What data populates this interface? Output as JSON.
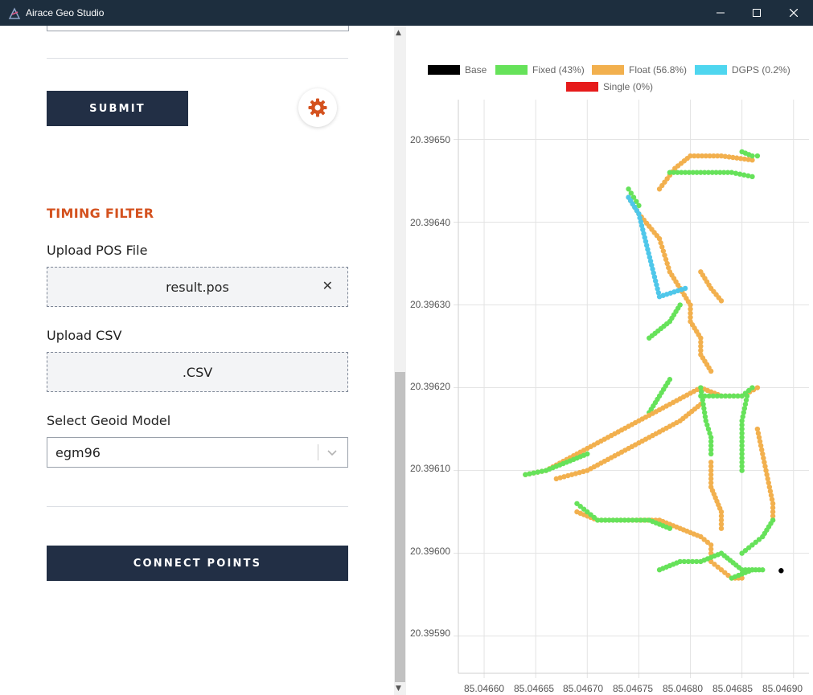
{
  "window": {
    "title": "Airace Geo Studio",
    "minimize": "—",
    "maximize": "☐",
    "close": "✕"
  },
  "left": {
    "submit_label": "SUBMIT",
    "section_title": "TIMING FILTER",
    "pos_label": "Upload POS File",
    "pos_value": "result.pos",
    "pos_clear": "✕",
    "csv_label": "Upload CSV",
    "csv_value": ".CSV",
    "geoid_label": "Select Geoid Model",
    "geoid_value": "egm96",
    "connect_label": "CONNECT POINTS"
  },
  "colors": {
    "accent": "#d4521f",
    "button": "#222f45",
    "titlebar": "#1d2e3e"
  },
  "chart_data": {
    "type": "scatter",
    "legend": [
      {
        "name": "Base",
        "color": "#000000"
      },
      {
        "name": "Fixed (43%)",
        "color": "#66e25a"
      },
      {
        "name": "Float (56.8%)",
        "color": "#f2b04e"
      },
      {
        "name": "DGPS (0.2%)",
        "color": "#4fc7ea"
      },
      {
        "name": "Single (0%)",
        "color": "#e32626"
      }
    ],
    "x_ticks": [
      "85.04660",
      "85.04665",
      "85.04670",
      "85.04675",
      "85.04680",
      "85.04685",
      "85.04690"
    ],
    "y_ticks": [
      "20.39650",
      "20.39640",
      "20.39630",
      "20.39620",
      "20.39610",
      "20.39600",
      "20.39590"
    ],
    "xlim": [
      85.046575,
      85.046915
    ],
    "ylim": [
      20.395855,
      20.396548
    ],
    "grid": true,
    "legend_position": "top",
    "base_point": [
      85.046888,
      20.395979
    ],
    "tracks": [
      {
        "type": "Float",
        "pts": [
          [
            85.04677,
            20.39644
          ],
          [
            85.046785,
            20.396465
          ],
          [
            85.0468,
            20.39648
          ],
          [
            85.04683,
            20.39648
          ],
          [
            85.04686,
            20.396475
          ]
        ]
      },
      {
        "type": "Fixed",
        "pts": [
          [
            85.04678,
            20.39646
          ],
          [
            85.04681,
            20.39646
          ],
          [
            85.04684,
            20.39646
          ],
          [
            85.04686,
            20.396455
          ]
        ]
      },
      {
        "type": "Fixed",
        "pts": [
          [
            85.04685,
            20.396485
          ],
          [
            85.04686,
            20.39648
          ],
          [
            85.046865,
            20.39648
          ]
        ]
      },
      {
        "type": "Float",
        "pts": [
          [
            85.04674,
            20.39643
          ],
          [
            85.04675,
            20.39641
          ],
          [
            85.04677,
            20.39638
          ],
          [
            85.046775,
            20.39636
          ],
          [
            85.04678,
            20.39634
          ],
          [
            85.04679,
            20.39632
          ],
          [
            85.0468,
            20.3963
          ],
          [
            85.0468,
            20.39628
          ],
          [
            85.04681,
            20.39626
          ],
          [
            85.04681,
            20.39624
          ],
          [
            85.04682,
            20.39622
          ]
        ]
      },
      {
        "type": "Float",
        "pts": [
          [
            85.04681,
            20.39634
          ],
          [
            85.04682,
            20.39632
          ],
          [
            85.04683,
            20.396305
          ]
        ]
      },
      {
        "type": "Fixed",
        "pts": [
          [
            85.04674,
            20.39644
          ],
          [
            85.046745,
            20.39643
          ],
          [
            85.04675,
            20.39642
          ]
        ]
      },
      {
        "type": "Fixed",
        "pts": [
          [
            85.04676,
            20.39626
          ],
          [
            85.04678,
            20.39628
          ],
          [
            85.04679,
            20.3963
          ]
        ]
      },
      {
        "type": "Fixed",
        "pts": [
          [
            85.04676,
            20.39617
          ],
          [
            85.04677,
            20.39619
          ],
          [
            85.04678,
            20.39621
          ]
        ]
      },
      {
        "type": "Float",
        "pts": [
          [
            85.04664,
            20.396095
          ],
          [
            85.04666,
            20.3961
          ],
          [
            85.04669,
            20.39612
          ],
          [
            85.04672,
            20.39614
          ],
          [
            85.04675,
            20.39616
          ],
          [
            85.04678,
            20.39618
          ],
          [
            85.04681,
            20.3962
          ],
          [
            85.04683,
            20.39619
          ],
          [
            85.04685,
            20.39619
          ],
          [
            85.046865,
            20.3962
          ]
        ]
      },
      {
        "type": "Fixed",
        "pts": [
          [
            85.04664,
            20.396095
          ],
          [
            85.04666,
            20.3961
          ],
          [
            85.04668,
            20.39611
          ],
          [
            85.0467,
            20.39612
          ]
        ]
      },
      {
        "type": "Float",
        "pts": [
          [
            85.04667,
            20.39609
          ],
          [
            85.0467,
            20.3961
          ],
          [
            85.04673,
            20.39612
          ],
          [
            85.04676,
            20.39614
          ],
          [
            85.04679,
            20.39616
          ],
          [
            85.04681,
            20.39618
          ]
        ]
      },
      {
        "type": "Fixed",
        "pts": [
          [
            85.04681,
            20.39619
          ],
          [
            85.04683,
            20.39619
          ],
          [
            85.04685,
            20.39619
          ],
          [
            85.04686,
            20.3962
          ]
        ]
      },
      {
        "type": "Fixed",
        "pts": [
          [
            85.04681,
            20.3962
          ],
          [
            85.046815,
            20.39616
          ],
          [
            85.04682,
            20.39614
          ],
          [
            85.04682,
            20.39612
          ]
        ]
      },
      {
        "type": "Float",
        "pts": [
          [
            85.04682,
            20.39611
          ],
          [
            85.04682,
            20.39608
          ],
          [
            85.04683,
            20.39605
          ],
          [
            85.04683,
            20.39603
          ]
        ]
      },
      {
        "type": "Fixed",
        "pts": [
          [
            85.046855,
            20.39619
          ],
          [
            85.04685,
            20.39616
          ],
          [
            85.04685,
            20.39613
          ],
          [
            85.04685,
            20.3961
          ]
        ]
      },
      {
        "type": "Float",
        "pts": [
          [
            85.046865,
            20.39615
          ],
          [
            85.04687,
            20.39612
          ],
          [
            85.046875,
            20.39609
          ],
          [
            85.04688,
            20.39606
          ],
          [
            85.04688,
            20.39604
          ]
        ]
      },
      {
        "type": "Fixed",
        "pts": [
          [
            85.04688,
            20.39604
          ],
          [
            85.04687,
            20.39602
          ],
          [
            85.04686,
            20.39601
          ],
          [
            85.04685,
            20.396
          ]
        ]
      },
      {
        "type": "Float",
        "pts": [
          [
            85.04669,
            20.39605
          ],
          [
            85.04671,
            20.39604
          ],
          [
            85.04674,
            20.39604
          ],
          [
            85.04677,
            20.39604
          ],
          [
            85.04679,
            20.39603
          ],
          [
            85.04681,
            20.39602
          ],
          [
            85.04682,
            20.39601
          ],
          [
            85.04682,
            20.39599
          ],
          [
            85.04683,
            20.39598
          ],
          [
            85.04684,
            20.39597
          ],
          [
            85.04685,
            20.39597
          ]
        ]
      },
      {
        "type": "Fixed",
        "pts": [
          [
            85.04669,
            20.39606
          ],
          [
            85.0467,
            20.39605
          ],
          [
            85.04671,
            20.39604
          ],
          [
            85.04674,
            20.39604
          ],
          [
            85.04676,
            20.39604
          ],
          [
            85.04678,
            20.39603
          ]
        ]
      },
      {
        "type": "Fixed",
        "pts": [
          [
            85.04677,
            20.39598
          ],
          [
            85.04679,
            20.39599
          ],
          [
            85.04681,
            20.39599
          ],
          [
            85.04683,
            20.396
          ],
          [
            85.04685,
            20.39598
          ],
          [
            85.04686,
            20.39598
          ]
        ]
      },
      {
        "type": "Fixed",
        "pts": [
          [
            85.04684,
            20.39597
          ],
          [
            85.04686,
            20.39598
          ],
          [
            85.04687,
            20.39598
          ]
        ]
      },
      {
        "type": "DGPS",
        "pts": [
          [
            85.04674,
            20.39643
          ],
          [
            85.04675,
            20.39641
          ],
          [
            85.04677,
            20.39631
          ],
          [
            85.046795,
            20.39632
          ]
        ]
      }
    ]
  }
}
